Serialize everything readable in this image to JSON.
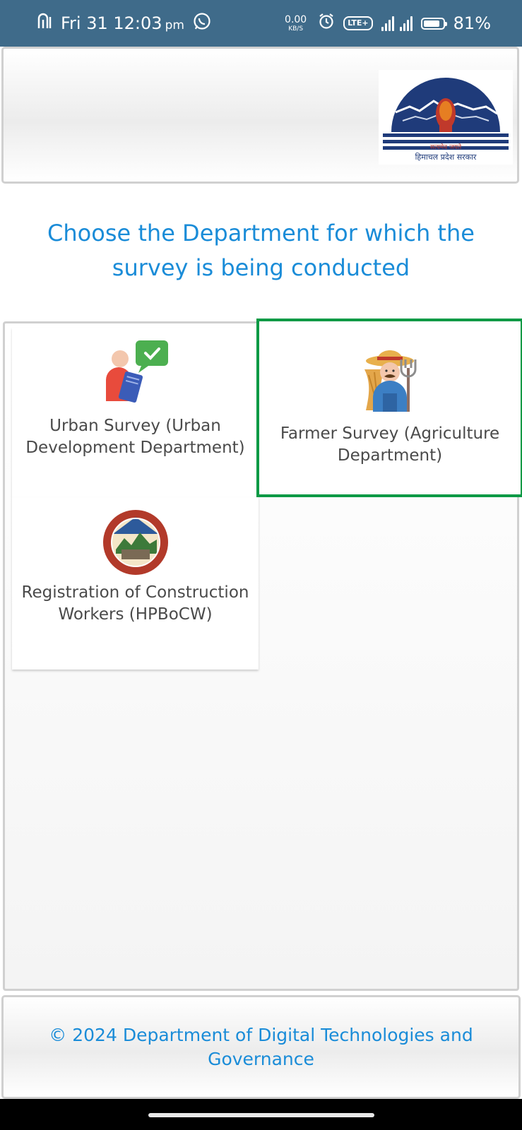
{
  "status_bar": {
    "time": "Fri 31 12:03",
    "time_suffix": "pm",
    "net_speed_value": "0.00",
    "net_speed_unit": "KB/S",
    "lte_label": "LTE+",
    "battery": "81%"
  },
  "header": {
    "logo_motto": "सत्यमेव जयते",
    "logo_caption": "हिमाचल प्रदेश सरकार"
  },
  "title": "Choose the Department for which the survey is being conducted",
  "departments": [
    {
      "label": "Urban Survey (Urban Development Department)",
      "icon": "survey-person-icon"
    },
    {
      "label": "Farmer Survey (Agriculture Department)",
      "icon": "farmer-icon",
      "selected": true
    },
    {
      "label": "Registration of Construction Workers (HPBoCW)",
      "icon": "hpbocw-emblem-icon"
    }
  ],
  "footer": {
    "copyright": "© 2024 Department of Digital Technologies and Governance"
  },
  "colors": {
    "status_bar": "#3f6b8a",
    "accent_blue": "#1a8cd8",
    "selected_border": "#0b9a45"
  }
}
